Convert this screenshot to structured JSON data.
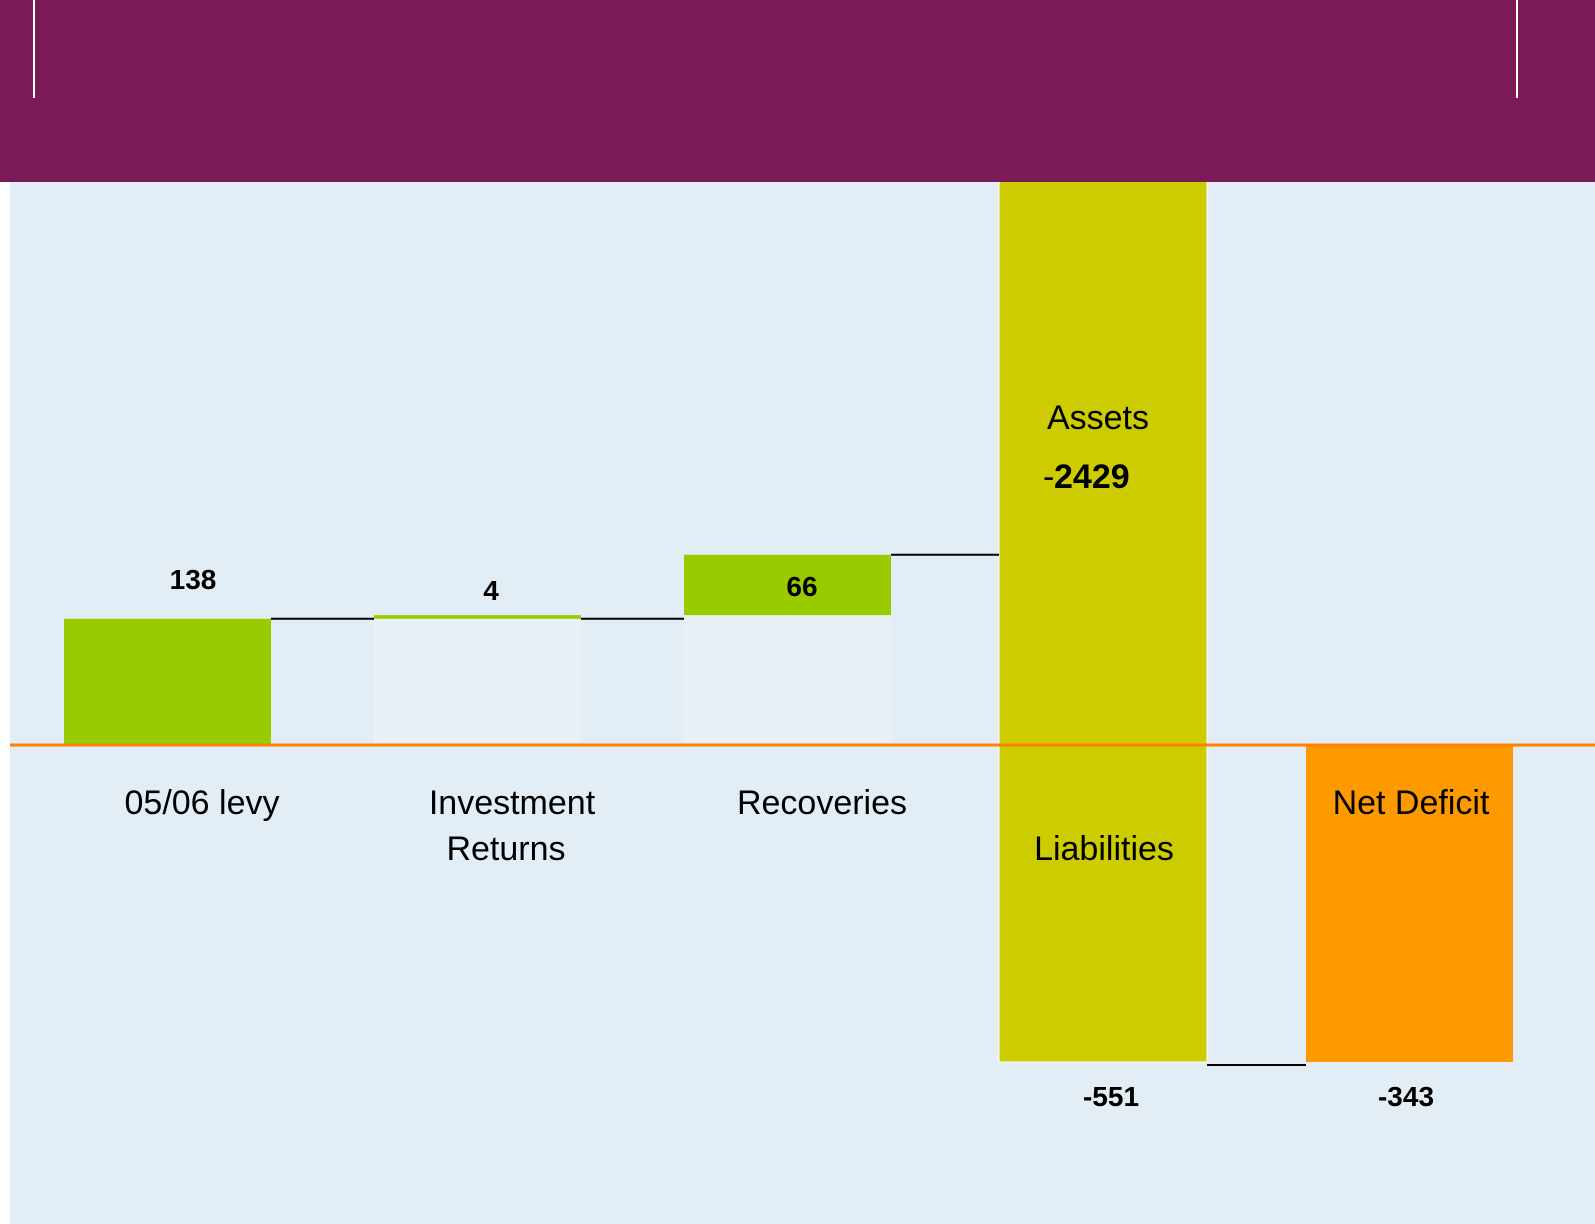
{
  "theme": {
    "header_color": "#7a1a57",
    "plot_background": "#e3edf5",
    "positive_color": "#99cc00",
    "total_color": "#cccc00",
    "deficit_color": "#ff9900",
    "baseline_color": "#ff7f00",
    "connector_color": "#000000"
  },
  "chart_data": {
    "type": "bar",
    "subtype": "waterfall",
    "categories": [
      "05/06 levy",
      "Investment Returns",
      "Recoveries",
      "Liabilities",
      "Net Deficit"
    ],
    "values": [
      138,
      4,
      66,
      -551,
      -343
    ],
    "value_labels": [
      "138",
      "4",
      "66",
      "-551",
      "-343"
    ],
    "inner_labels": {
      "assets_label": "Assets",
      "assets_value": "2429",
      "assets_sign": "-",
      "liabilities_label": "Liabilities"
    },
    "grid": false,
    "legend": "none"
  }
}
